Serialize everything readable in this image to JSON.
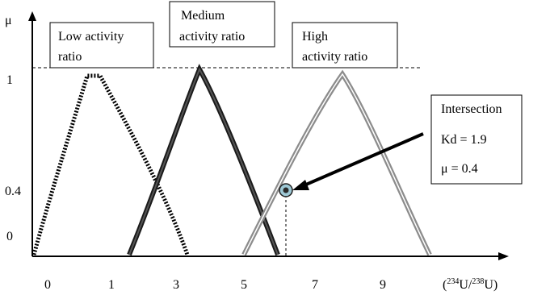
{
  "axes": {
    "y_label": "μ",
    "y_ticks": [
      "1",
      "0.4",
      "0"
    ],
    "x_ticks": [
      "0",
      "1",
      "3",
      "5",
      "7",
      "9"
    ]
  },
  "x_unit": {
    "prefix": "(",
    "sup1": "234",
    "mid": "U/",
    "sup2": "238",
    "suffix": "U)"
  },
  "sets": [
    {
      "name": "low",
      "label_lines": [
        "Low activity",
        "ratio"
      ],
      "style": "dotted",
      "color": "#000000"
    },
    {
      "name": "medium",
      "label_lines": [
        "Medium",
        "activity ratio"
      ],
      "style": "solid-thick",
      "color": "#333333"
    },
    {
      "name": "high",
      "label_lines": [
        "High",
        "activity ratio"
      ],
      "style": "double-gray",
      "color": "#999999"
    }
  ],
  "intersection": {
    "lines": [
      "Intersection",
      "Kd = 1.9",
      "μ = 0.4"
    ],
    "marker_color": "#4f8fa8"
  }
}
